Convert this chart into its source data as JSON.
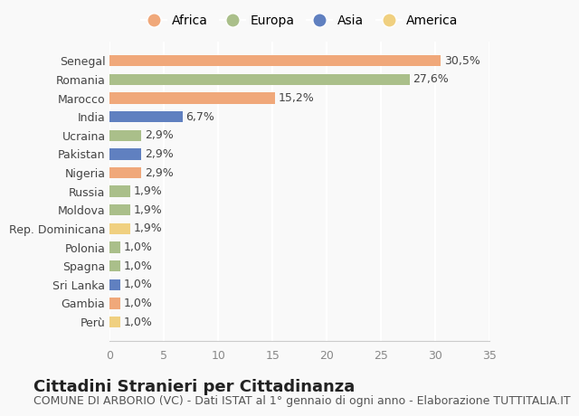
{
  "categories": [
    "Perù",
    "Gambia",
    "Sri Lanka",
    "Spagna",
    "Polonia",
    "Rep. Dominicana",
    "Moldova",
    "Russia",
    "Nigeria",
    "Pakistan",
    "Ucraina",
    "India",
    "Marocco",
    "Romania",
    "Senegal"
  ],
  "values": [
    1.0,
    1.0,
    1.0,
    1.0,
    1.0,
    1.9,
    1.9,
    1.9,
    2.9,
    2.9,
    2.9,
    6.7,
    15.2,
    27.6,
    30.5
  ],
  "labels": [
    "1,0%",
    "1,0%",
    "1,0%",
    "1,0%",
    "1,0%",
    "1,9%",
    "1,9%",
    "1,9%",
    "2,9%",
    "2,9%",
    "2,9%",
    "6,7%",
    "15,2%",
    "27,6%",
    "30,5%"
  ],
  "continents": [
    "America",
    "Africa",
    "Asia",
    "Europa",
    "Europa",
    "America",
    "Europa",
    "Europa",
    "Africa",
    "Asia",
    "Europa",
    "Asia",
    "Africa",
    "Europa",
    "Africa"
  ],
  "continent_colors": {
    "Africa": "#F0A87A",
    "Europa": "#AABF8A",
    "Asia": "#6080C0",
    "America": "#F0D080"
  },
  "legend_order": [
    "Africa",
    "Europa",
    "Asia",
    "America"
  ],
  "title": "Cittadini Stranieri per Cittadinanza",
  "subtitle": "COMUNE DI ARBORIO (VC) - Dati ISTAT al 1° gennaio di ogni anno - Elaborazione TUTTITALIA.IT",
  "xlim": [
    0,
    35
  ],
  "xticks": [
    0,
    5,
    10,
    15,
    20,
    25,
    30,
    35
  ],
  "background_color": "#f9f9f9",
  "grid_color": "#ffffff",
  "bar_height": 0.6,
  "title_fontsize": 13,
  "subtitle_fontsize": 9,
  "label_fontsize": 9,
  "tick_fontsize": 9,
  "legend_fontsize": 10
}
